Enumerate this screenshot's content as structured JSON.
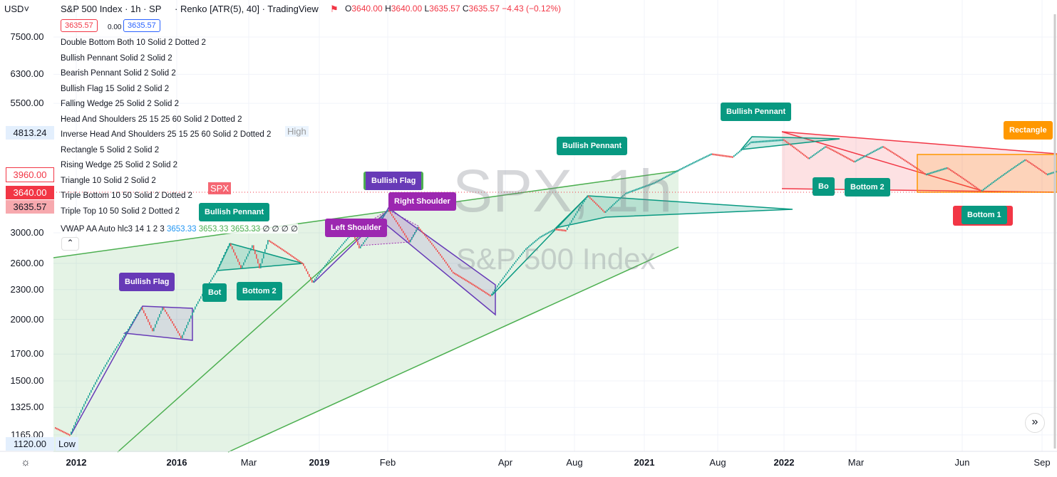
{
  "header": {
    "currency": "USD",
    "title": "S&P 500 Index · 1h · SP",
    "chart_type": "· Renko [ATR(5), 40] · TradingView",
    "ohlc": {
      "o": "3640.00",
      "h": "3640.00",
      "l": "3635.57",
      "c": "3635.57",
      "change": "−4.43 (−0.12%)"
    },
    "bid": "3635.57",
    "spread": "0.00",
    "ask": "3635.57"
  },
  "indicators": [
    "Double Bottom Both 10 Solid 2 Dotted 2",
    "Bullish Pennant Solid 2 Solid 2",
    "Bearish Pennant Solid 2 Solid 2",
    "Bullish Flag 15 Solid 2 Solid 2",
    "Falling Wedge 25 Solid 2 Solid 2",
    "Head And Shoulders 25 15 25 60 Solid 2 Dotted 2",
    "Inverse Head And Shoulders 25 15 25 60 Solid 2 Dotted 2",
    "Rectangle 5 Solid 2 Solid 2",
    "Rising Wedge 25 Solid 2 Solid 2",
    "Triangle 10 Solid 2 Solid 2",
    "Triple Bottom 10 50 Solid 2 Dotted 2",
    "Triple Top 10 50 Solid 2 Dotted 2"
  ],
  "vwap": {
    "label": "VWAP AA Auto hlc3 14 1 2 3",
    "v1": "3653.33",
    "v2": "3653.33",
    "v3": "3653.33",
    "rest": "∅ ∅ ∅ ∅"
  },
  "watermark": {
    "symbol": "SPX, 1h",
    "name": "S&P 500 Index"
  },
  "price_tags": {
    "high": "4813.24",
    "high_label": "High",
    "alert": "3960.00",
    "last": "3640.00",
    "last_label": "SPX",
    "close": "3635.57",
    "low": "1120.00",
    "low_label": "Low"
  },
  "pattern_labels": [
    "Bullish Flag",
    "Bullish Pennant",
    "Bot",
    "Bottom 2",
    "Left Shoulder",
    "Bullish Flag",
    "Right Shoulder",
    "Bullish Pennant",
    "Bullish Pennant",
    "Bo",
    "Bottom 2",
    "Rectangle",
    "Bottom 1"
  ],
  "colors": {
    "up": "#26a69a",
    "down": "#ef5350",
    "pennant": "#089981",
    "flag": "#673ab7",
    "shoulder": "#9c27b0",
    "rectangle": "#ff9800",
    "wedge": "#f23645",
    "trend": "#4caf50"
  },
  "chart_data": {
    "type": "line",
    "style": "renko",
    "scale": "log",
    "ylim": [
      1100,
      8500
    ],
    "y_ticks": [
      7500,
      6300,
      5500,
      3000,
      2600,
      2300,
      2000,
      1700,
      1500,
      1325,
      1165
    ],
    "x_ticks": [
      "2012",
      "2016",
      "Mar",
      "2019",
      "Feb",
      "Apr",
      "Aug",
      "2021",
      "Aug",
      "2022",
      "Mar",
      "Jun",
      "Sep"
    ],
    "x_ticks_major": [
      true,
      true,
      false,
      true,
      false,
      false,
      false,
      true,
      false,
      true,
      false,
      false,
      false
    ],
    "path": [
      [
        1,
        1208
      ],
      [
        12,
        1165
      ],
      [
        52,
        1892
      ],
      [
        62,
        2115
      ],
      [
        70,
        1892
      ],
      [
        77,
        2115
      ],
      [
        90,
        1831
      ],
      [
        100,
        2125
      ],
      [
        115,
        2513
      ],
      [
        124,
        2855
      ],
      [
        132,
        2540
      ],
      [
        140,
        2830
      ],
      [
        145,
        2540
      ],
      [
        151,
        2900
      ],
      [
        175,
        2600
      ],
      [
        182,
        2377
      ],
      [
        210,
        3000
      ],
      [
        215,
        2790
      ],
      [
        225,
        3060
      ],
      [
        235,
        3340
      ],
      [
        250,
        2870
      ],
      [
        256,
        3080
      ],
      [
        280,
        2500
      ],
      [
        307,
        2235
      ],
      [
        332,
        2790
      ],
      [
        342,
        2950
      ],
      [
        352,
        3060
      ],
      [
        360,
        3040
      ],
      [
        375,
        3570
      ],
      [
        387,
        3300
      ],
      [
        402,
        3620
      ],
      [
        422,
        3800
      ],
      [
        442,
        4075
      ],
      [
        462,
        4350
      ],
      [
        477,
        4290
      ],
      [
        490,
        4600
      ],
      [
        512,
        4650
      ],
      [
        530,
        4250
      ],
      [
        542,
        4500
      ],
      [
        562,
        4190
      ],
      [
        582,
        4500
      ],
      [
        612,
        3950
      ],
      [
        627,
        4075
      ],
      [
        651,
        3650
      ],
      [
        682,
        4230
      ],
      [
        697,
        3950
      ],
      [
        704,
        4010
      ]
    ]
  },
  "controls": {
    "collapse": "⌃",
    "scroll_right": "»"
  }
}
